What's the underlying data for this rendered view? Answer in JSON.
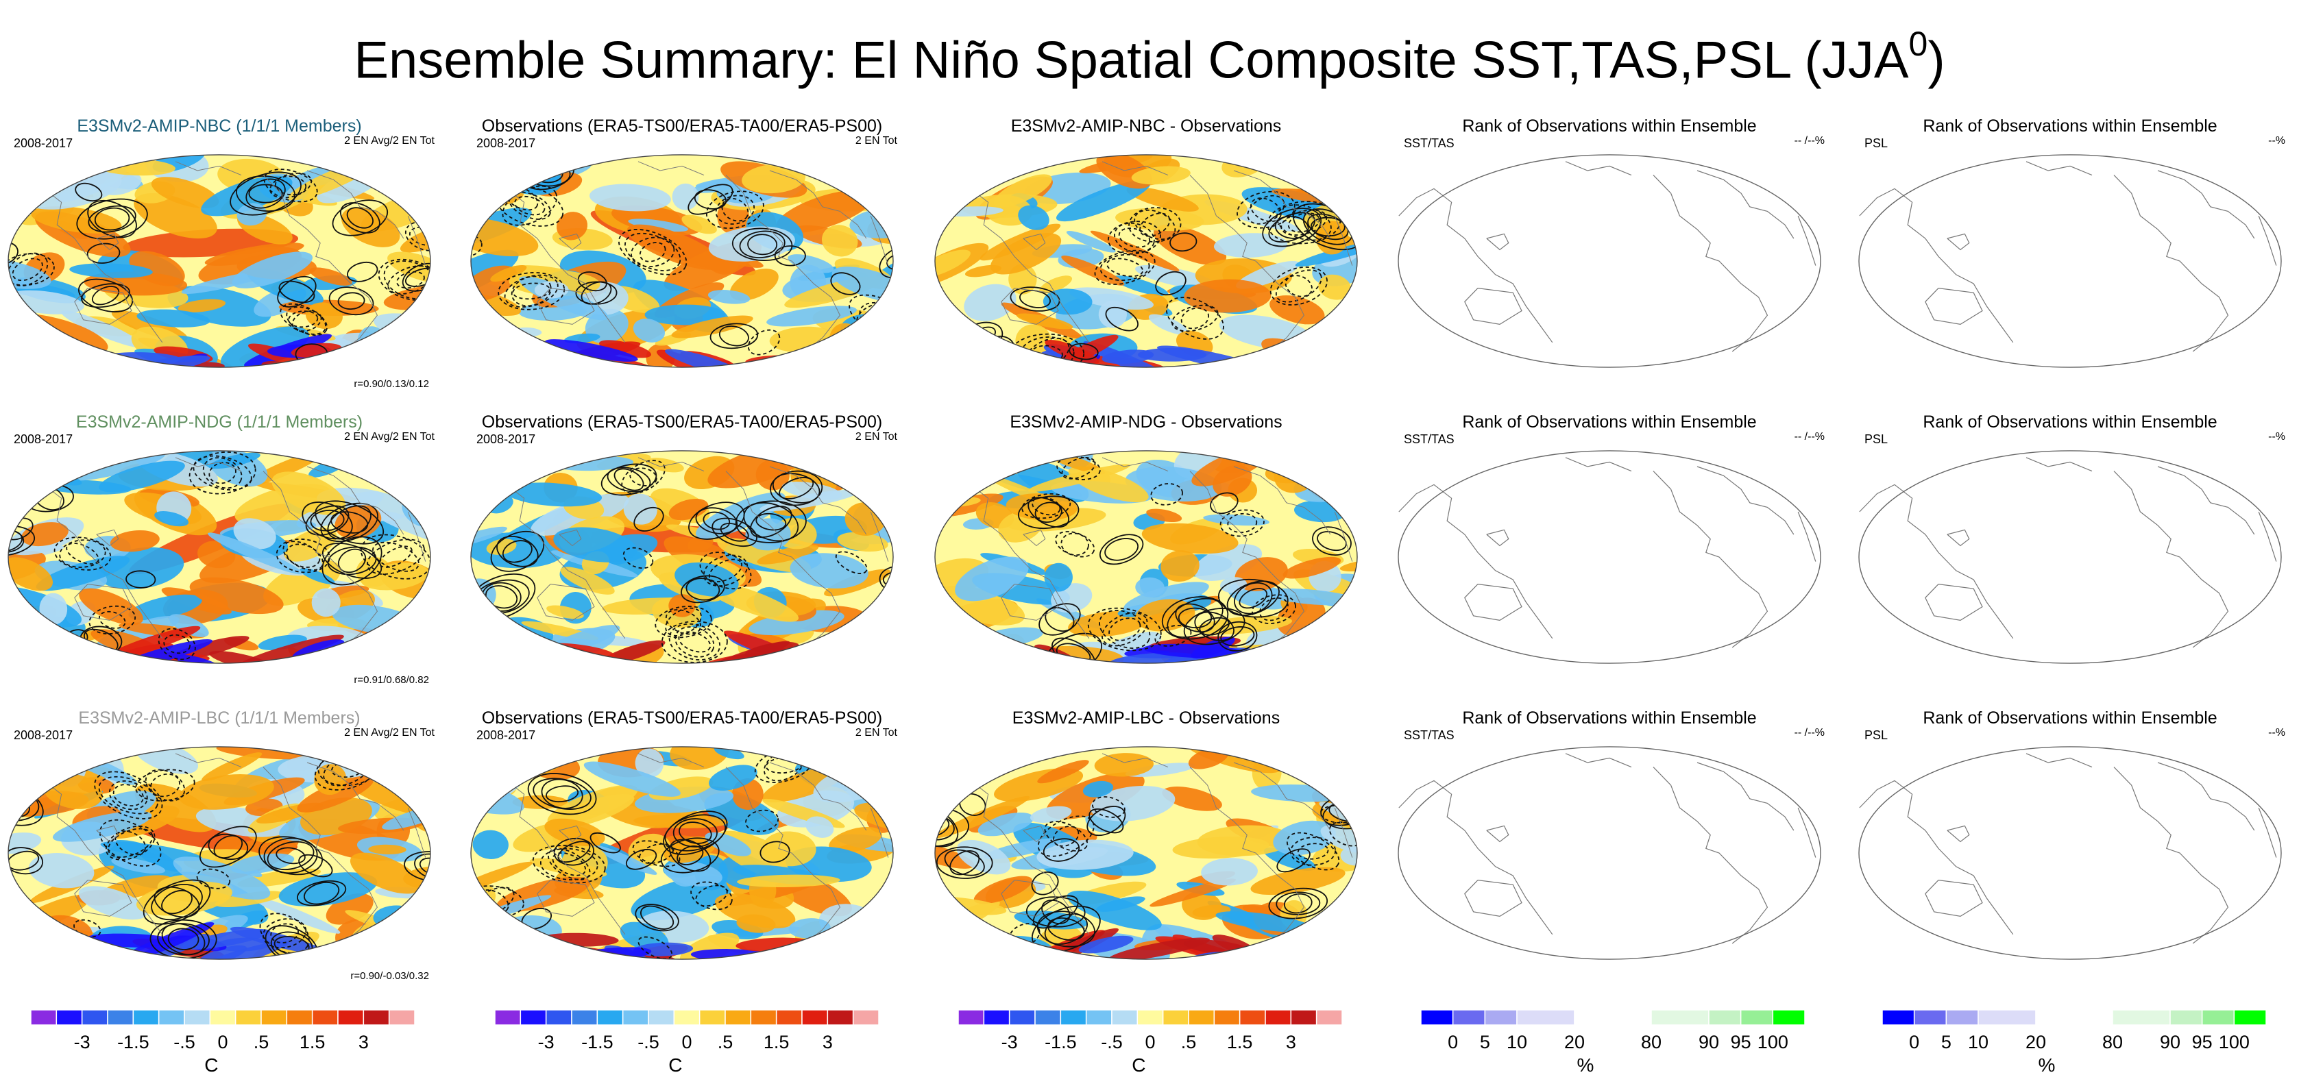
{
  "title_main": "Ensemble Summary: El Niño Spatial Composite SST,TAS,PSL (JJA",
  "title_sup": "0",
  "title_end": ")",
  "rows": [
    {
      "model": {
        "title": "E3SMv2-AMIP-NBC (1/1/1 Members)",
        "title_color": "#1b5e7a",
        "years": "2008-2017",
        "tag": "2 EN Avg/2 EN Tot",
        "r": "r=0.90/0.13/0.12"
      },
      "obs": {
        "title": "Observations (ERA5-TS00/ERA5-TA00/ERA5-PS00)",
        "years": "2008-2017",
        "tag": "2 EN Tot"
      },
      "diff": {
        "title": "E3SMv2-AMIP-NBC - Observations"
      },
      "rank1": {
        "title": "Rank of Observations within Ensemble",
        "left": "SST/TAS",
        "right": "-- /--%"
      },
      "rank2": {
        "title": "Rank of Observations within Ensemble",
        "left": "PSL",
        "right": "--%"
      }
    },
    {
      "model": {
        "title": "E3SMv2-AMIP-NDG (1/1/1 Members)",
        "title_color": "#5f8f5f",
        "years": "2008-2017",
        "tag": "2 EN Avg/2 EN Tot",
        "r": "r=0.91/0.68/0.82"
      },
      "obs": {
        "title": "Observations (ERA5-TS00/ERA5-TA00/ERA5-PS00)",
        "years": "2008-2017",
        "tag": "2 EN Tot"
      },
      "diff": {
        "title": "E3SMv2-AMIP-NDG - Observations"
      },
      "rank1": {
        "title": "Rank of Observations within Ensemble",
        "left": "SST/TAS",
        "right": "-- /--%"
      },
      "rank2": {
        "title": "Rank of Observations within Ensemble",
        "left": "PSL",
        "right": "--%"
      }
    },
    {
      "model": {
        "title": "E3SMv2-AMIP-LBC (1/1/1 Members)",
        "title_color": "#9a9a9a",
        "years": "2008-2017",
        "tag": "2 EN Avg/2 EN Tot",
        "r": "r=0.90/-0.03/0.32"
      },
      "obs": {
        "title": "Observations (ERA5-TS00/ERA5-TA00/ERA5-PS00)",
        "years": "2008-2017",
        "tag": "2 EN Tot"
      },
      "diff": {
        "title": "E3SMv2-AMIP-LBC - Observations"
      },
      "rank1": {
        "title": "Rank of Observations within Ensemble",
        "left": "SST/TAS",
        "right": "-- /--%"
      },
      "rank2": {
        "title": "Rank of Observations within Ensemble",
        "left": "PSL",
        "right": "--%"
      }
    }
  ],
  "chart_data": {
    "type": "heatmap",
    "temperature_colorbar": {
      "unit": "C",
      "tick_labels": [
        "-3",
        "-1.5",
        "-.5",
        "0",
        ".5",
        "1.5",
        "3"
      ],
      "colors": [
        "#8a2be2",
        "#1a10ff",
        "#2f56f0",
        "#3c82e8",
        "#28a8f0",
        "#74c3f4",
        "#b5dcf4",
        "#fffa9e",
        "#fbd13a",
        "#f9a914",
        "#f57e0e",
        "#ee4e12",
        "#e01e10",
        "#c01818",
        "#f5a6a6"
      ]
    },
    "rank_colorbar": {
      "unit": "%",
      "tick_labels": [
        "0",
        "5",
        "10",
        "20",
        "80",
        "90",
        "95",
        "100"
      ],
      "colors": [
        "#0000ff",
        "#6a6af0",
        "#aaaaf2",
        "#dcdcf8",
        "#ffffff",
        "#e2f8e2",
        "#c4f2c4",
        "#96ef96",
        "#00ff00"
      ]
    }
  }
}
